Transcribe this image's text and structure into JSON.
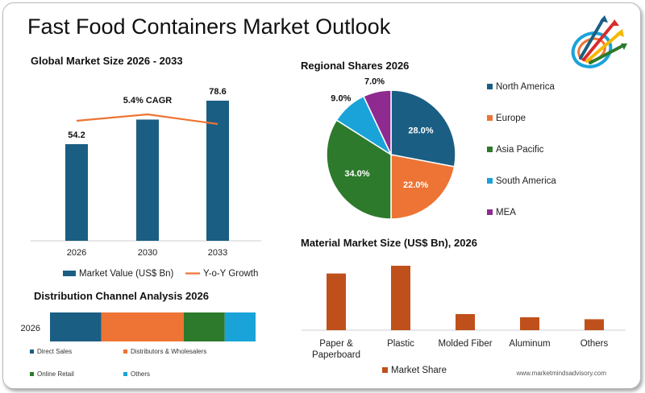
{
  "title": "Fast Food Containers Market Outlook",
  "watermark": "www.marketmindsadvisory.com",
  "colors": {
    "navy": "#1b5e83",
    "orange": "#ed7434",
    "green": "#2d7a2c",
    "lightblue": "#1aa3d8",
    "purple": "#8e2a90",
    "rust": "#c0501b"
  },
  "chart_data": [
    {
      "type": "bar",
      "title": "Global Market Size 2026 - 2033",
      "categories": [
        "2026",
        "2030",
        "2033"
      ],
      "series": [
        {
          "name": "Market Value (US$ Bn)",
          "values": [
            54.2,
            68.0,
            78.6
          ],
          "labels": [
            "54.2",
            "",
            "78.6"
          ]
        },
        {
          "name": "Y-o-Y Growth",
          "type": "line",
          "values": [
            5.6,
            5.8,
            5.5
          ]
        }
      ],
      "annotation": "5.4% CAGR",
      "ylim": [
        0,
        100
      ]
    },
    {
      "type": "pie",
      "title": "Regional Shares 2026",
      "labels": [
        "North America",
        "Europe",
        "Asia Pacific",
        "South America",
        "MEA"
      ],
      "values": [
        28.0,
        22.0,
        34.0,
        9.0,
        7.0
      ],
      "value_labels": [
        "28.0%",
        "22.0%",
        "34.0%",
        "9.0%",
        "7.0%"
      ],
      "legend": "right"
    },
    {
      "type": "bar",
      "orientation": "horizontal-stacked",
      "title": "Distribution Channel Analysis 2026",
      "categories": [
        "2026"
      ],
      "series": [
        {
          "name": "Direct Sales",
          "values": [
            25
          ]
        },
        {
          "name": "Distributors & Wholesalers",
          "values": [
            40
          ]
        },
        {
          "name": "Online Retail",
          "values": [
            20
          ]
        },
        {
          "name": "Others",
          "values": [
            15
          ]
        }
      ],
      "legend": "bottom"
    },
    {
      "type": "bar",
      "title": "Material Market Size (US$ Bn), 2026",
      "categories": [
        "Paper & Paperboard",
        "Plastic",
        "Molded Fiber",
        "Aluminum",
        "Others"
      ],
      "category_lines": [
        [
          "Paper &",
          "Paperboard"
        ],
        [
          "Plastic"
        ],
        [
          "Molded Fiber"
        ],
        [
          "Aluminum"
        ],
        [
          "Others"
        ]
      ],
      "series": [
        {
          "name": "Market Share",
          "values": [
            8.8,
            10.0,
            2.5,
            2.0,
            1.7
          ]
        }
      ],
      "ylim": [
        0,
        11
      ],
      "legend": "bottom"
    }
  ]
}
